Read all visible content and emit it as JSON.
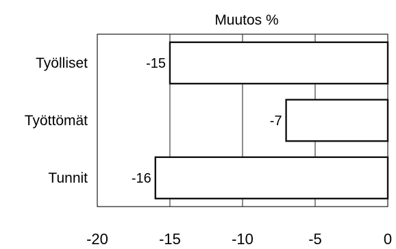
{
  "chart_data": {
    "type": "bar",
    "orientation": "horizontal",
    "title": "Muutos %",
    "xlabel": "",
    "ylabel": "",
    "categories": [
      "Työlliset",
      "Työttömät",
      "Tunnit"
    ],
    "values": [
      -15,
      -7,
      -16
    ],
    "data_labels": [
      "-15",
      "-7",
      "-16"
    ],
    "xlim": [
      -20,
      0
    ],
    "xticks": [
      -20,
      -15,
      -10,
      -5,
      0
    ],
    "xtick_labels": [
      "-20",
      "-15",
      "-10",
      "-5",
      "0"
    ],
    "grid": "vertical",
    "bar_fill": "#ffffff",
    "bar_stroke": "#111111"
  }
}
